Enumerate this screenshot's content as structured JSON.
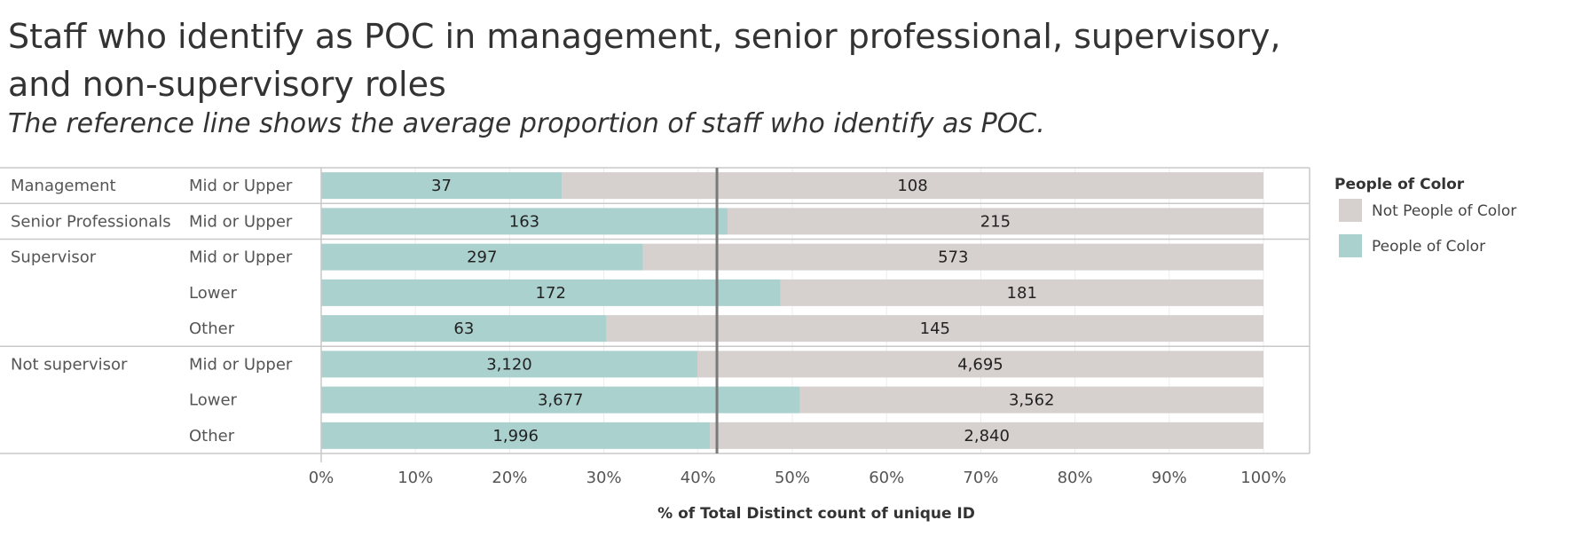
{
  "chart_data": {
    "type": "bar",
    "orientation": "horizontal",
    "stacking": "percent",
    "title": "Staff who identify as POC in management, senior professional, supervisory, and non-supervisory roles",
    "subtitle": "The reference line shows the average proportion of staff who identify as POC.",
    "xlabel": "% of Total Distinct count of unique ID",
    "xlim": [
      0,
      100
    ],
    "x_ticks": [
      "0%",
      "10%",
      "20%",
      "30%",
      "40%",
      "50%",
      "60%",
      "70%",
      "80%",
      "90%",
      "100%"
    ],
    "reference_line": 42,
    "legend": {
      "title": "People of Color",
      "position": "right"
    },
    "groups": [
      {
        "label": "Management",
        "rows": [
          {
            "label": "Mid or Upper",
            "poc": 37,
            "poc_label": "37",
            "not_poc": 108,
            "not_poc_label": "108"
          }
        ]
      },
      {
        "label": "Senior Professionals",
        "rows": [
          {
            "label": "Mid or Upper",
            "poc": 163,
            "poc_label": "163",
            "not_poc": 215,
            "not_poc_label": "215"
          }
        ]
      },
      {
        "label": "Supervisor",
        "rows": [
          {
            "label": "Mid or Upper",
            "poc": 297,
            "poc_label": "297",
            "not_poc": 573,
            "not_poc_label": "573"
          },
          {
            "label": "Lower",
            "poc": 172,
            "poc_label": "172",
            "not_poc": 181,
            "not_poc_label": "181"
          },
          {
            "label": "Other",
            "poc": 63,
            "poc_label": "63",
            "not_poc": 145,
            "not_poc_label": "145"
          }
        ]
      },
      {
        "label": "Not supervisor",
        "rows": [
          {
            "label": "Mid or Upper",
            "poc": 3120,
            "poc_label": "3,120",
            "not_poc": 4695,
            "not_poc_label": "4,695"
          },
          {
            "label": "Lower",
            "poc": 3677,
            "poc_label": "3,677",
            "not_poc": 3562,
            "not_poc_label": "3,562"
          },
          {
            "label": "Other",
            "poc": 1996,
            "poc_label": "1,996",
            "not_poc": 2840,
            "not_poc_label": "2,840"
          }
        ]
      }
    ],
    "series": [
      {
        "name": "Not People of Color",
        "color": "#d6d0ce"
      },
      {
        "name": "People of Color",
        "color": "#abd1cf"
      }
    ]
  }
}
